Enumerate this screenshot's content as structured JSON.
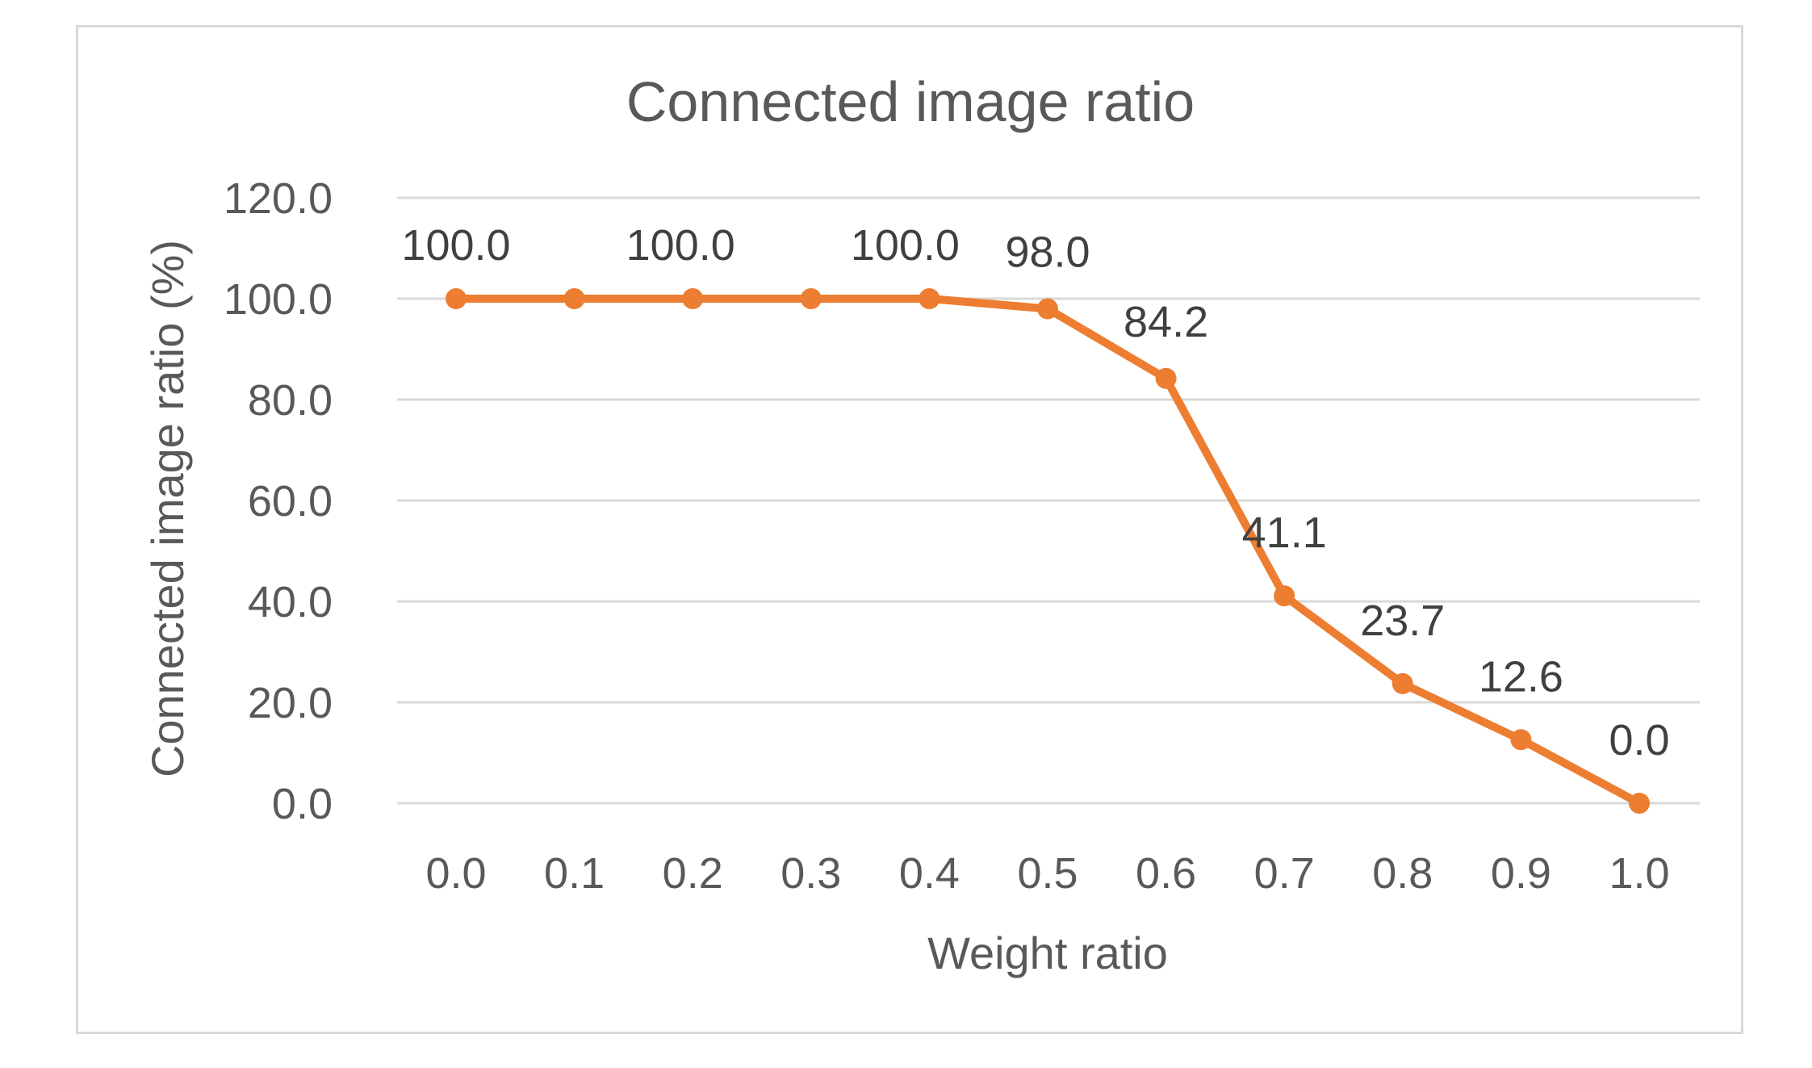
{
  "chart_data": {
    "type": "line",
    "title": "Connected image ratio",
    "xlabel": "Weight ratio",
    "ylabel": "Connected image ratio (%)",
    "categories": [
      "0.0",
      "0.1",
      "0.2",
      "0.3",
      "0.4",
      "0.5",
      "0.6",
      "0.7",
      "0.8",
      "0.9",
      "1.0"
    ],
    "series": [
      {
        "values": [
          100.0,
          100.0,
          100.0,
          100.0,
          100.0,
          98.0,
          84.2,
          41.1,
          23.7,
          12.6,
          0.0
        ],
        "data_labels": [
          "100.0",
          "100.0",
          "100.0",
          "100.0",
          "100.0",
          "98.0",
          "84.2",
          "41.1",
          "23.7",
          "12.6",
          "0.0"
        ]
      }
    ],
    "ylim": [
      0,
      120
    ],
    "yticks": [
      "0.0",
      "20.0",
      "40.0",
      "60.0",
      "80.0",
      "100.0",
      "120.0"
    ],
    "grid": true,
    "legend": "none",
    "colors": {
      "series": "#ed7d31",
      "grid": "#d9d9d9",
      "text": "#595959"
    }
  }
}
